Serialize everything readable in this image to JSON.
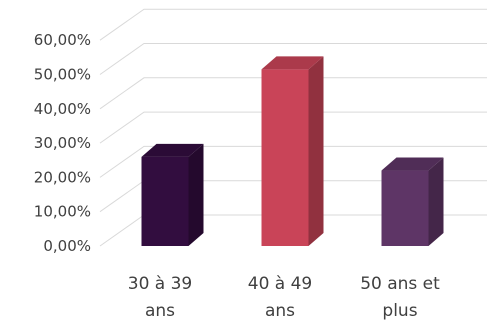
{
  "chart_data": {
    "type": "bar",
    "title": "",
    "xlabel": "",
    "ylabel": "",
    "categories": [
      [
        "30 à 39",
        "ans"
      ],
      [
        "40 à 49",
        "ans"
      ],
      [
        "50 ans et",
        "plus"
      ]
    ],
    "values": [
      26,
      51.5,
      22
    ],
    "ylim": [
      0,
      60
    ],
    "yticks": [
      0,
      10,
      20,
      30,
      40,
      50,
      60
    ],
    "ytick_labels": [
      "0,00%",
      "10,00%",
      "20,00%",
      "30,00%",
      "40,00%",
      "50,00%",
      "60,00%"
    ],
    "grid": true,
    "style": "3d-column",
    "colors": [
      "#320d3f",
      "#c94458",
      "#5e3566"
    ]
  }
}
